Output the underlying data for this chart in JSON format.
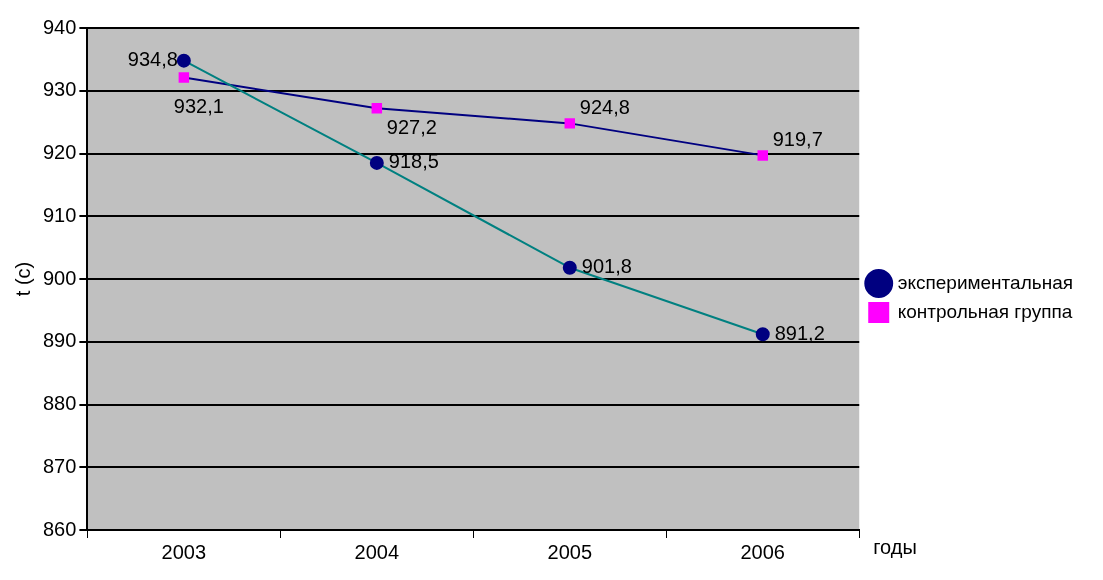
{
  "chart_data": {
    "type": "line",
    "xlabel": "годы",
    "ylabel": "t (c)",
    "categories": [
      "2003",
      "2004",
      "2005",
      "2006"
    ],
    "ylim": [
      860,
      940
    ],
    "yticks": [
      860,
      870,
      880,
      890,
      900,
      910,
      920,
      930,
      940
    ],
    "grid": "y",
    "legend": "right",
    "marker": "circle",
    "series": [
      {
        "name": "экспериментальная",
        "color": "#008080",
        "colors": [
          "#000080",
          "#000080",
          "#000080",
          "#000080"
        ],
        "values": [
          934.8,
          918.5,
          901.8,
          891.2
        ],
        "value_labels": [
          "934,8",
          "918,5",
          "901,8",
          "891,2"
        ]
      },
      {
        "name": "контрольная группа",
        "color": "#000080",
        "marker": "square",
        "colors": [
          "#ff00ff",
          "#ff00ff",
          "#ff00ff",
          "#ff00ff"
        ],
        "values": [
          932.1,
          927.2,
          924.8,
          919.7
        ],
        "value_labels": [
          "932,1",
          "927,2",
          "924,8",
          "919,7"
        ]
      }
    ]
  }
}
